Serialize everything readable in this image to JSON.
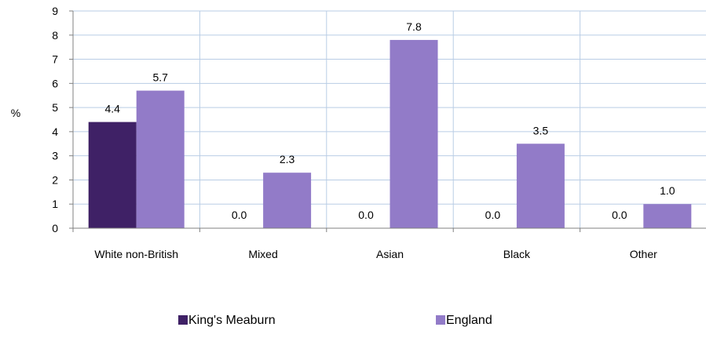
{
  "chart_data": {
    "type": "bar",
    "ylabel": "%",
    "ylim": [
      0,
      9
    ],
    "yticks": [
      0,
      1,
      2,
      3,
      4,
      5,
      6,
      7,
      8,
      9
    ],
    "categories": [
      "White non-British",
      "Mixed",
      "Asian",
      "Black",
      "Other"
    ],
    "series": [
      {
        "name": "King's Meaburn",
        "color": "#3f2166",
        "values": [
          4.4,
          0.0,
          0.0,
          0.0,
          0.0
        ],
        "labels": [
          "4.4",
          "0.0",
          "0.0",
          "0.0",
          "0.0"
        ]
      },
      {
        "name": "England",
        "color": "#927bc8",
        "values": [
          5.7,
          2.3,
          7.8,
          3.5,
          1.0
        ],
        "labels": [
          "5.7",
          "2.3",
          "7.8",
          "3.5",
          "1.0"
        ]
      }
    ],
    "grid": true,
    "gridColor": "#b9cde5",
    "legend": "bottom"
  }
}
